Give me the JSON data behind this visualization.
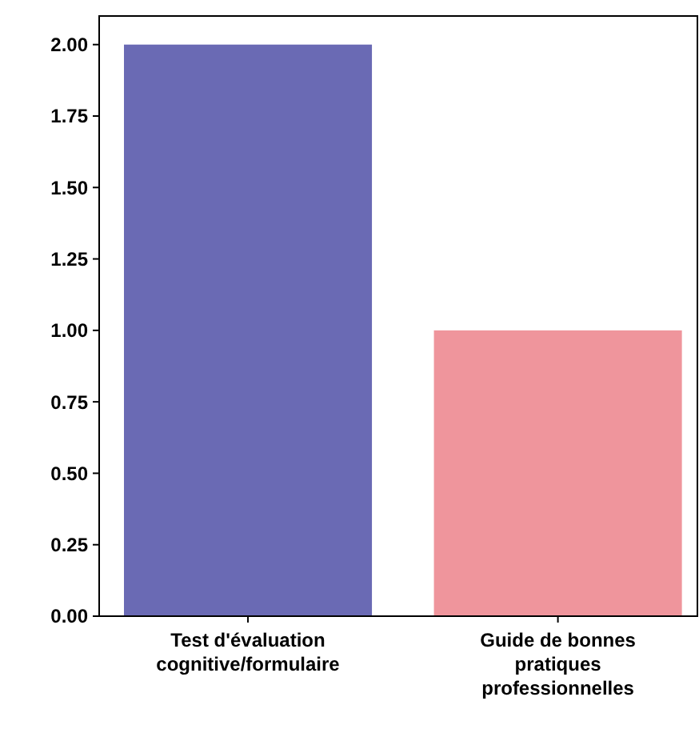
{
  "chart_data": {
    "type": "bar",
    "categories": [
      "Test d'évaluation cognitive/formulaire",
      "Guide de bonnes pratiques professionnelles"
    ],
    "values": [
      2,
      1
    ],
    "colors": [
      "#6a6ab4",
      "#ef959c"
    ],
    "ylim": [
      0,
      2.1
    ],
    "yticks": [
      {
        "value": 0,
        "label": "0.00"
      },
      {
        "value": 0.25,
        "label": "0.25"
      },
      {
        "value": 0.5,
        "label": "0.50"
      },
      {
        "value": 0.75,
        "label": "0.75"
      },
      {
        "value": 1,
        "label": "1.00"
      },
      {
        "value": 1.25,
        "label": "1.25"
      },
      {
        "value": 1.5,
        "label": "1.50"
      },
      {
        "value": 1.75,
        "label": "1.75"
      },
      {
        "value": 2,
        "label": "2.00"
      }
    ]
  }
}
